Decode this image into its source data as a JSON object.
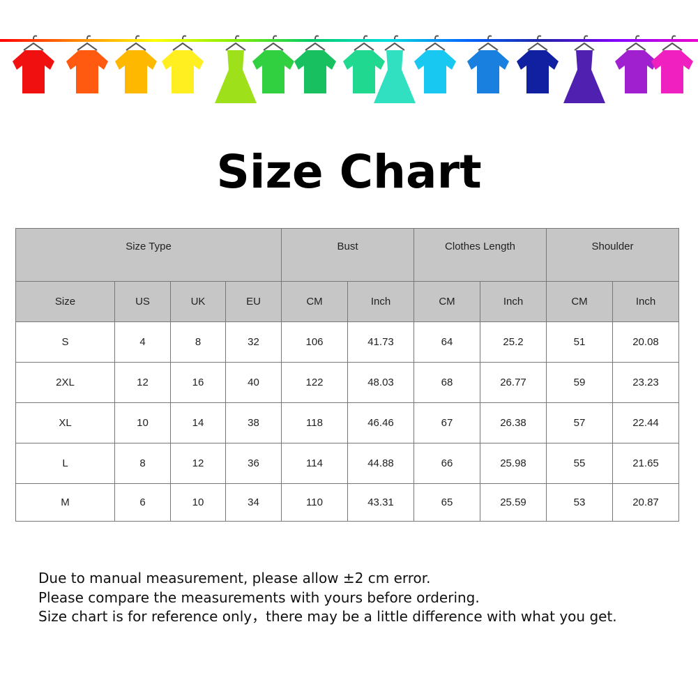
{
  "banner": {
    "garment_colors": [
      "#f01010",
      "#ff5a10",
      "#ffb800",
      "#ffee20",
      "#9ee01a",
      "#30d040",
      "#18c060",
      "#20d890",
      "#30e0c0",
      "#18c8f0",
      "#1a80e0",
      "#1020a0",
      "#5020b0",
      "#a020d0",
      "#f020c0"
    ]
  },
  "title": "Size Chart",
  "table": {
    "groups": [
      "Size Type",
      "Bust",
      "Clothes Length",
      "Shoulder"
    ],
    "columns": [
      "Size",
      "US",
      "UK",
      "EU",
      "CM",
      "Inch",
      "CM",
      "Inch",
      "CM",
      "Inch"
    ],
    "rows": [
      [
        "S",
        "4",
        "8",
        "32",
        "106",
        "41.73",
        "64",
        "25.2",
        "51",
        "20.08"
      ],
      [
        "2XL",
        "12",
        "16",
        "40",
        "122",
        "48.03",
        "68",
        "26.77",
        "59",
        "23.23"
      ],
      [
        "XL",
        "10",
        "14",
        "38",
        "118",
        "46.46",
        "67",
        "26.38",
        "57",
        "22.44"
      ],
      [
        "L",
        "8",
        "12",
        "36",
        "114",
        "44.88",
        "66",
        "25.98",
        "55",
        "21.65"
      ],
      [
        "M",
        "6",
        "10",
        "34",
        "110",
        "43.31",
        "65",
        "25.59",
        "53",
        "20.87"
      ]
    ]
  },
  "notes": [
    "Due to manual measurement, please allow ±2 cm error.",
    "Please compare the measurements with yours before ordering.",
    "Size chart is for reference only，there may be a little difference with what you get."
  ]
}
